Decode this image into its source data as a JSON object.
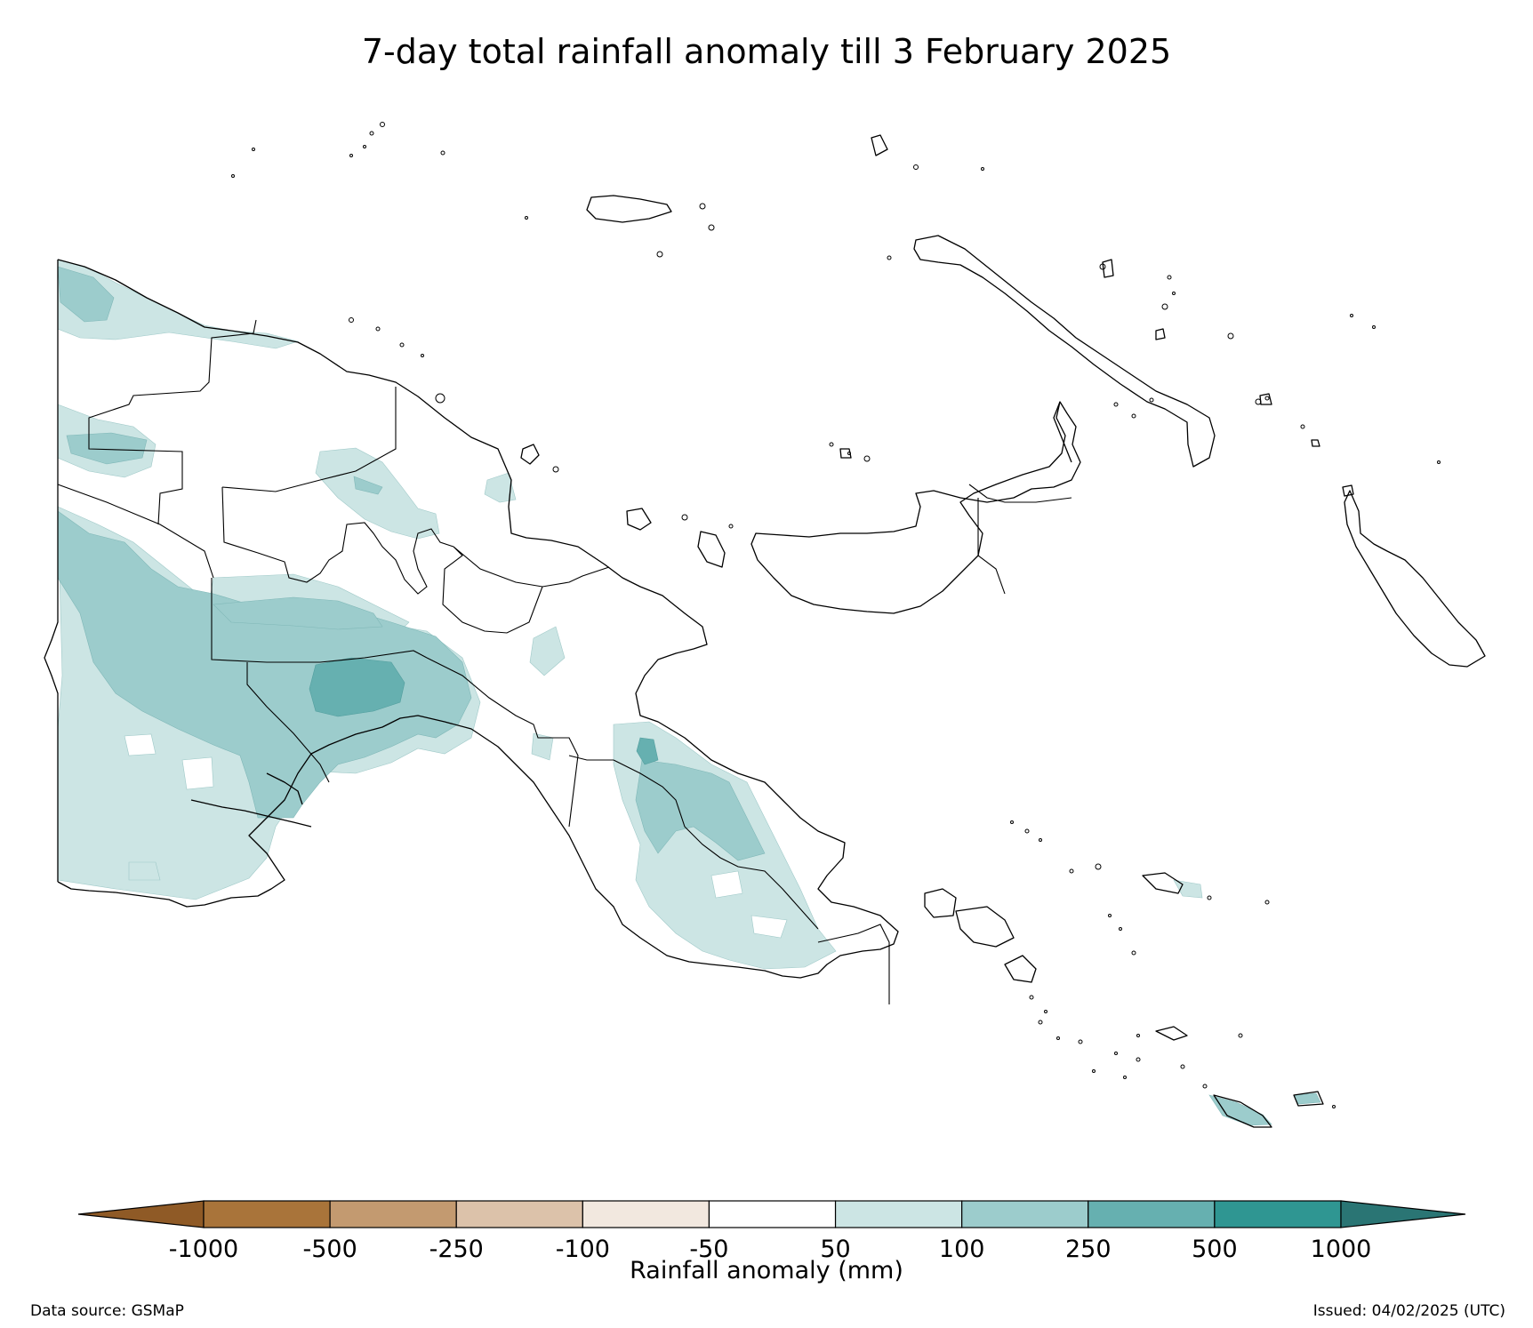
{
  "title": "7-day total rainfall anomaly till 3 February 2025",
  "colorbar": {
    "label": "Rainfall anomaly (mm)",
    "ticks": [
      "-1000",
      "-500",
      "-250",
      "-100",
      "-50",
      "50",
      "100",
      "250",
      "500",
      "1000"
    ],
    "colors": {
      "below_min": "#8f5a26",
      "bins": [
        "#a9743a",
        "#c39a70",
        "#dcc2aa",
        "#f2e8df",
        "#ffffff",
        "#cce5e4",
        "#9ccccc",
        "#66b0b0",
        "#2f9692"
      ],
      "above_max": "#2a7574"
    }
  },
  "colors": {
    "coast": "#000000",
    "land": "#ffffff"
  },
  "footer": {
    "source": "Data source: GSMaP",
    "issued": "Issued: 04/02/2025 (UTC)"
  }
}
